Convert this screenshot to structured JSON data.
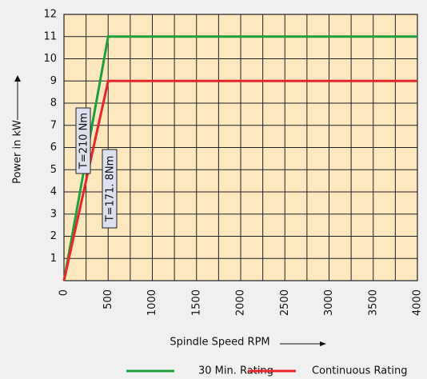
{
  "chart_data": {
    "type": "line",
    "xlabel": "Spindle Speed RPM",
    "ylabel": "Power in kW",
    "xlim": [
      0,
      4000
    ],
    "ylim": [
      0,
      12
    ],
    "xticks": [
      0,
      500,
      1000,
      1500,
      2000,
      2500,
      3000,
      3500,
      4000
    ],
    "xminorticks": [
      250,
      750,
      1250,
      1750,
      2250,
      2750,
      3250,
      3750
    ],
    "yticks": [
      1,
      2,
      3,
      4,
      5,
      6,
      7,
      8,
      9,
      10,
      11,
      12
    ],
    "grid": true,
    "legend": "bottom",
    "series": [
      {
        "name": "30 Min. Rating",
        "color": "#1fa03c",
        "x": [
          0,
          500,
          4000
        ],
        "values": [
          0,
          11,
          11
        ]
      },
      {
        "name": "Continuous Rating",
        "color": "#e8262a",
        "x": [
          0,
          500,
          4000
        ],
        "values": [
          0,
          9,
          9
        ]
      }
    ],
    "annotations": [
      {
        "text": "T=210 Nm"
      },
      {
        "text": "T=171. 8Nm"
      }
    ]
  }
}
